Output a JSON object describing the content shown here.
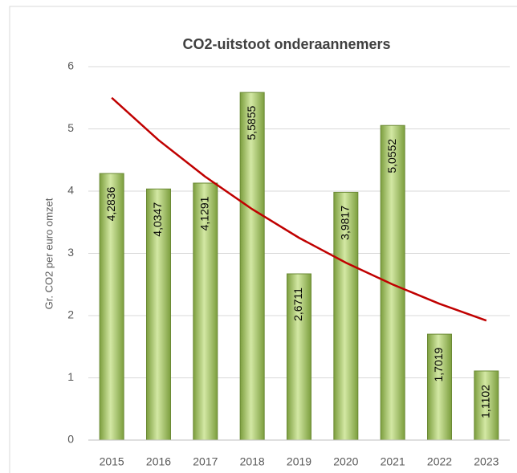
{
  "chart_data": {
    "type": "bar",
    "title": "CO2-uitstoot onderaannemers",
    "y_label": "Gr. CO2 per euro omzet",
    "categories": [
      "2015",
      "2016",
      "2017",
      "2018",
      "2019",
      "2020",
      "2021",
      "2022",
      "2023"
    ],
    "values": [
      4.2836,
      4.0347,
      4.1291,
      5.5855,
      2.6711,
      3.9817,
      5.0552,
      1.7019,
      1.1102
    ],
    "value_labels": [
      "4,2836",
      "4,0347",
      "4,1291",
      "5,5855",
      "2,6711",
      "3,9817",
      "5,0552",
      "1,7019",
      "1,1102"
    ],
    "color": "#9dbf5c",
    "trendline": {
      "type": "exponential",
      "color": "#c00000",
      "values": [
        5.5,
        4.82,
        4.23,
        3.71,
        3.25,
        2.85,
        2.5,
        2.19,
        1.92
      ]
    },
    "ylim": [
      0,
      6
    ],
    "yticks": [
      0,
      1,
      2,
      3,
      4,
      5,
      6
    ],
    "grid": true
  }
}
